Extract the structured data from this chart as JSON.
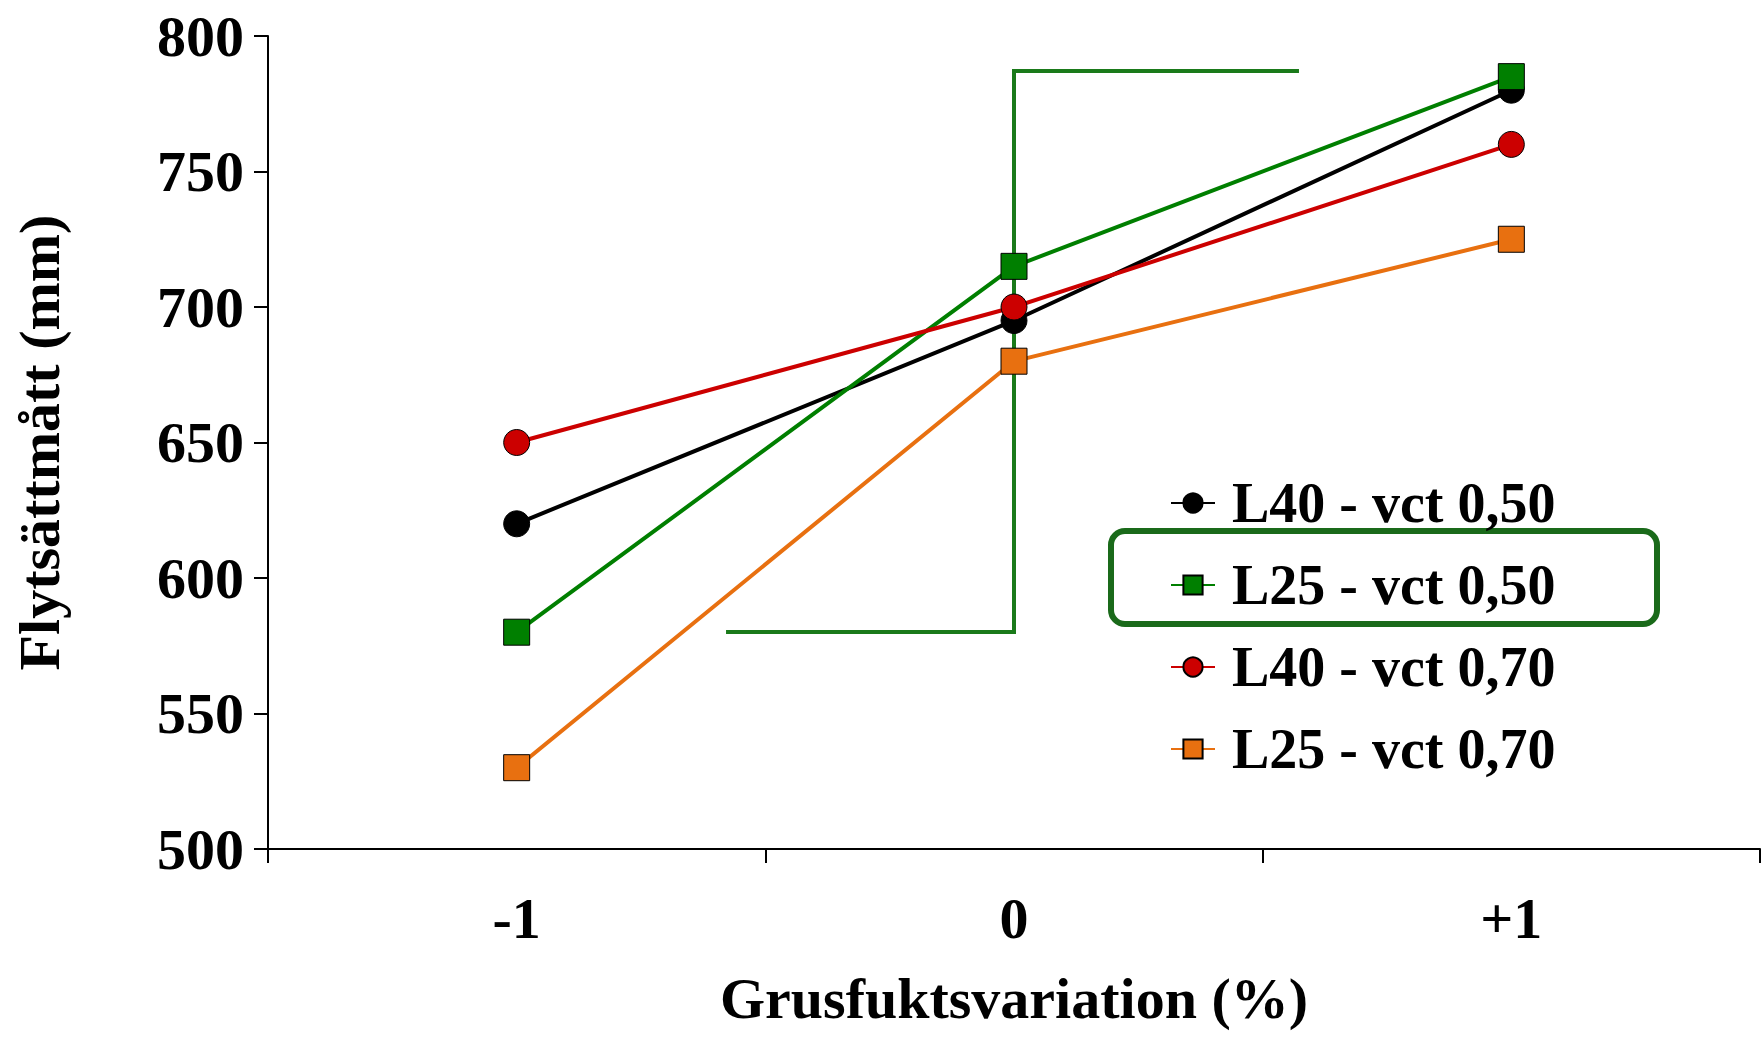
{
  "chart_data": {
    "type": "line",
    "xlabel": "Grusfuktsvariation (%)",
    "ylabel": "Flytsättmått (mm)",
    "categories": [
      "-1",
      "0",
      "+1"
    ],
    "series": [
      {
        "name": "L40 - vct 0,50",
        "color": "#000000",
        "marker": "circle",
        "values": [
          620,
          695,
          780
        ]
      },
      {
        "name": "L25 - vct 0,50",
        "color": "#007f00",
        "marker": "square",
        "values": [
          580,
          715,
          785
        ]
      },
      {
        "name": "L40 - vct 0,70",
        "color": "#cc0000",
        "marker": "circle",
        "values": [
          650,
          700,
          760
        ]
      },
      {
        "name": "L25 - vct 0,70",
        "color": "#e87010",
        "marker": "square",
        "values": [
          530,
          680,
          725
        ]
      }
    ],
    "ylim": [
      500,
      800
    ],
    "yticks": [
      500,
      550,
      600,
      650,
      700,
      750,
      800
    ],
    "grid": false,
    "legend": "right",
    "line_style": "solid"
  }
}
